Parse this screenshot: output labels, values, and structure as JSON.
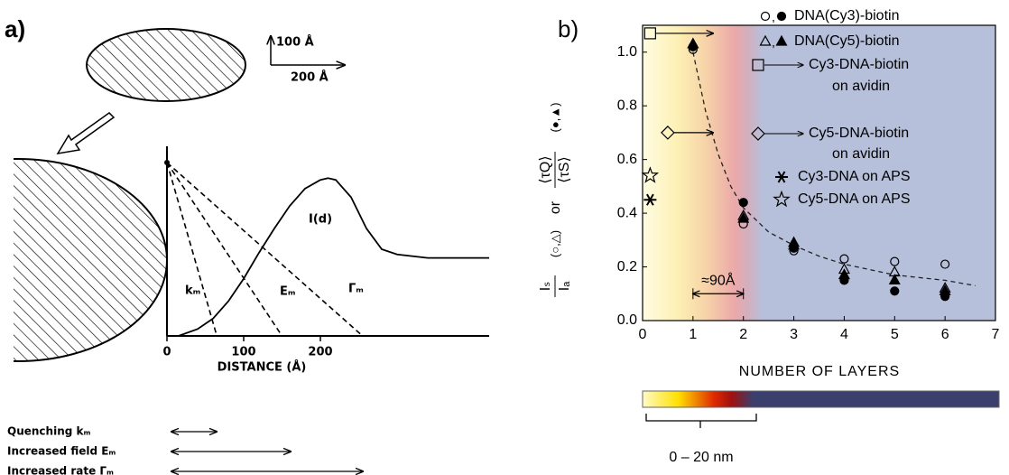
{
  "chart_data": [
    {
      "type": "line",
      "panel_label": "a)",
      "x_label": "DISTANCE (Å)",
      "xlim": [
        0,
        420
      ],
      "ylim": [
        0,
        1
      ],
      "xticks": [
        0,
        100,
        200
      ],
      "scale_labels": [
        "100 Å",
        "200 Å"
      ],
      "series": [
        {
          "name": "kₘ",
          "style": "dashed",
          "x": [
            0,
            65
          ],
          "values": [
            1,
            0
          ]
        },
        {
          "name": "Eₘ",
          "style": "dashed",
          "x": [
            0,
            150
          ],
          "values": [
            1,
            0
          ]
        },
        {
          "name": "Γₘ",
          "style": "dashed",
          "x": [
            0,
            255
          ],
          "values": [
            1,
            0
          ]
        },
        {
          "name": "I(d)",
          "style": "solid",
          "x": [
            15,
            40,
            60,
            80,
            100,
            120,
            140,
            160,
            180,
            200,
            210,
            220,
            240,
            260,
            280,
            300,
            340,
            380,
            420
          ],
          "values": [
            0,
            0.04,
            0.1,
            0.2,
            0.33,
            0.48,
            0.62,
            0.75,
            0.85,
            0.9,
            0.91,
            0.9,
            0.8,
            0.62,
            0.5,
            0.47,
            0.45,
            0.45,
            0.45
          ]
        }
      ],
      "legend": [
        "Quenching kₘ",
        "Increased field Eₘ",
        "Increased rate Γₘ"
      ]
    },
    {
      "type": "scatter",
      "panel_label": "b)",
      "x_label": "NUMBER OF LAYERS",
      "y_label": {
        "num1": "Iₛ",
        "den1": "Iₐ",
        "markers1": "(○,△)",
        "or": "or",
        "num2": "⟨τQ⟩",
        "den2": "⟨τS⟩",
        "markers2": "(●,▲)"
      },
      "xlim": [
        0,
        7
      ],
      "ylim": [
        0,
        1.1
      ],
      "xticks": [
        0,
        1,
        2,
        3,
        4,
        5,
        6,
        7
      ],
      "yticks": [
        {
          "value": 0,
          "label": "0.0"
        },
        0.2,
        0.4,
        0.6,
        0.8,
        {
          "value": 1,
          "label": "1.0"
        }
      ],
      "series": [
        {
          "name": "DNA(Cy3)-biotin",
          "marker": "circle",
          "x": [
            1,
            2,
            3,
            4,
            5,
            6
          ],
          "values": [
            1.01,
            0.36,
            0.26,
            0.23,
            0.22,
            0.21
          ],
          "lifetime_values": [
            1.02,
            0.44,
            0.27,
            0.15,
            0.11,
            0.09
          ]
        },
        {
          "name": "DNA(Cy5)-biotin",
          "marker": "triangle",
          "x": [
            1,
            2,
            3,
            4,
            5,
            6
          ],
          "values": [
            1.03,
            0.39,
            0.28,
            0.19,
            0.18,
            0.12
          ],
          "lifetime_values": [
            1.03,
            0.38,
            0.29,
            0.17,
            0.15,
            0.11
          ]
        },
        {
          "name": [
            "Cy3-DNA-biotin",
            "on avidin"
          ],
          "marker": "square",
          "x": [
            0.15
          ],
          "values": [
            1.07
          ],
          "arrow_to": [
            1.4
          ]
        },
        {
          "name": [
            "Cy5-DNA-biotin",
            "on avidin"
          ],
          "marker": "diamond",
          "x": [
            0.5
          ],
          "values": [
            0.7
          ],
          "arrow_to": [
            1.4
          ]
        },
        {
          "name": "Cy3-DNA on APS",
          "marker": "asterisk",
          "x": [
            0.15
          ],
          "values": [
            0.45
          ]
        },
        {
          "name": "Cy5-DNA on APS",
          "marker": "star",
          "x": [
            0.15
          ],
          "values": [
            0.54
          ]
        }
      ],
      "fit": {
        "x": [
          1,
          1.25,
          1.5,
          1.75,
          2,
          2.5,
          3,
          3.5,
          4,
          5,
          6,
          6.6
        ],
        "values": [
          1.0,
          0.78,
          0.62,
          0.5,
          0.42,
          0.33,
          0.28,
          0.24,
          0.21,
          0.17,
          0.15,
          0.13
        ]
      },
      "annotation": {
        "text": "≈90Å",
        "from": 1,
        "to": 2,
        "y": 0.1
      },
      "colorbar_label": "0 – 20 nm"
    }
  ]
}
